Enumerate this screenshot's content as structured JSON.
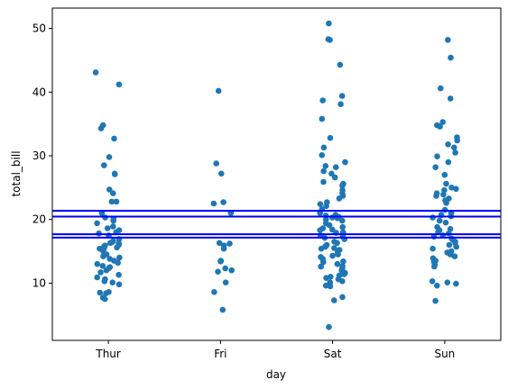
{
  "chart_data": {
    "type": "scatter",
    "title": "",
    "xlabel": "day",
    "ylabel": "total_bill",
    "categories": [
      "Thur",
      "Fri",
      "Sat",
      "Sun"
    ],
    "ylim": [
      1.0,
      53.2
    ],
    "yticks": [
      10,
      20,
      30,
      40,
      50
    ],
    "grid": false,
    "legend": "none",
    "colors": {
      "points": "#1f77b4",
      "hlines": "#0000ff"
    },
    "hlines": [
      21.35,
      20.45,
      17.68,
      17.15
    ],
    "series": [
      {
        "category": "Thur",
        "values": [
          43.1,
          41.2,
          34.8,
          34.3,
          32.7,
          29.8,
          28.5,
          27.2,
          27.1,
          24.7,
          24.1,
          22.8,
          22.8,
          21.0,
          20.3,
          20.1,
          19.8,
          19.4,
          18.9,
          18.6,
          18.3,
          18.0,
          17.8,
          17.5,
          16.9,
          16.6,
          16.4,
          16.3,
          16.2,
          16.0,
          15.9,
          15.8,
          15.6,
          15.5,
          15.4,
          15.0,
          14.5,
          14.2,
          14.0,
          13.8,
          13.5,
          13.2,
          13.0,
          12.7,
          12.5,
          12.3,
          12.0,
          11.7,
          11.3,
          10.9,
          10.6,
          10.3,
          10.1,
          9.8,
          8.6,
          8.5,
          8.4,
          7.7,
          7.5
        ]
      },
      {
        "category": "Fri",
        "values": [
          40.2,
          28.8,
          27.2,
          22.7,
          22.5,
          21.0,
          16.3,
          16.2,
          15.9,
          15.4,
          13.5,
          13.4,
          12.3,
          12.0,
          11.8,
          10.1,
          8.6,
          5.8
        ]
      },
      {
        "category": "Sat",
        "values": [
          50.8,
          48.3,
          48.2,
          44.3,
          39.4,
          38.7,
          38.1,
          35.8,
          32.8,
          31.3,
          30.1,
          29.0,
          28.4,
          28.2,
          27.6,
          27.2,
          26.6,
          25.9,
          25.6,
          25.3,
          24.6,
          24.1,
          23.7,
          23.3,
          22.7,
          22.4,
          22.1,
          21.6,
          21.0,
          20.7,
          20.6,
          20.4,
          20.3,
          20.2,
          20.0,
          19.8,
          19.4,
          19.1,
          18.8,
          18.6,
          18.4,
          18.3,
          18.0,
          17.9,
          17.8,
          17.5,
          17.3,
          17.1,
          16.9,
          16.5,
          16.3,
          16.0,
          15.8,
          15.7,
          15.5,
          15.4,
          15.2,
          14.8,
          14.5,
          14.3,
          14.1,
          13.8,
          13.4,
          13.3,
          13.0,
          12.7,
          12.6,
          12.3,
          12.0,
          11.6,
          11.4,
          11.2,
          11.0,
          10.8,
          10.6,
          10.3,
          10.1,
          9.6,
          9.5,
          7.8,
          7.3,
          3.1
        ]
      },
      {
        "category": "Sun",
        "values": [
          48.2,
          45.4,
          40.6,
          39.0,
          35.3,
          34.8,
          34.6,
          32.9,
          32.4,
          31.8,
          31.3,
          30.5,
          29.9,
          29.0,
          28.2,
          27.0,
          25.6,
          25.0,
          24.8,
          24.6,
          24.1,
          23.9,
          23.7,
          23.3,
          23.0,
          22.6,
          21.5,
          21.0,
          20.7,
          20.5,
          20.3,
          19.8,
          19.5,
          18.8,
          18.5,
          18.3,
          18.0,
          17.8,
          17.5,
          17.3,
          17.0,
          16.8,
          16.5,
          16.3,
          16.0,
          15.7,
          15.4,
          15.0,
          14.8,
          14.5,
          14.2,
          13.9,
          13.5,
          13.3,
          12.9,
          12.6,
          10.3,
          10.1,
          9.9,
          9.6,
          7.2
        ]
      }
    ]
  }
}
